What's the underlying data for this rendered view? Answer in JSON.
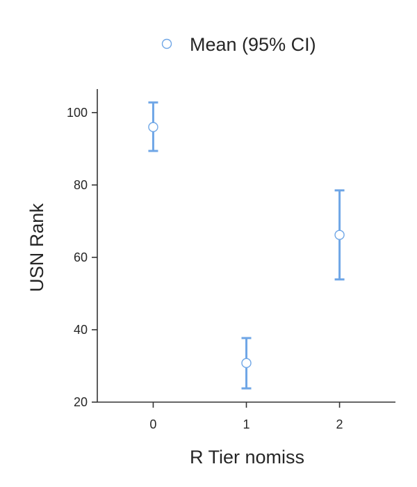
{
  "chart_data": {
    "type": "scatter",
    "title": "",
    "xlabel": "R Tier nomiss",
    "ylabel": "USN Rank",
    "x_ticks": [
      "0",
      "1",
      "2"
    ],
    "xlim": [
      -0.6,
      2.6
    ],
    "ylim": [
      20,
      106.5
    ],
    "y_ticks": [
      20,
      40,
      60,
      80,
      100
    ],
    "grid": false,
    "legend_position": "top",
    "series": [
      {
        "name": "Mean (95% CI)",
        "color": "#6fa6e6",
        "points": [
          {
            "x": 0,
            "y": 96,
            "ci_low": 89.4,
            "ci_high": 102.8
          },
          {
            "x": 1,
            "y": 30.8,
            "ci_low": 23.8,
            "ci_high": 37.7
          },
          {
            "x": 2,
            "y": 66.2,
            "ci_low": 53.9,
            "ci_high": 78.5
          }
        ]
      }
    ]
  }
}
